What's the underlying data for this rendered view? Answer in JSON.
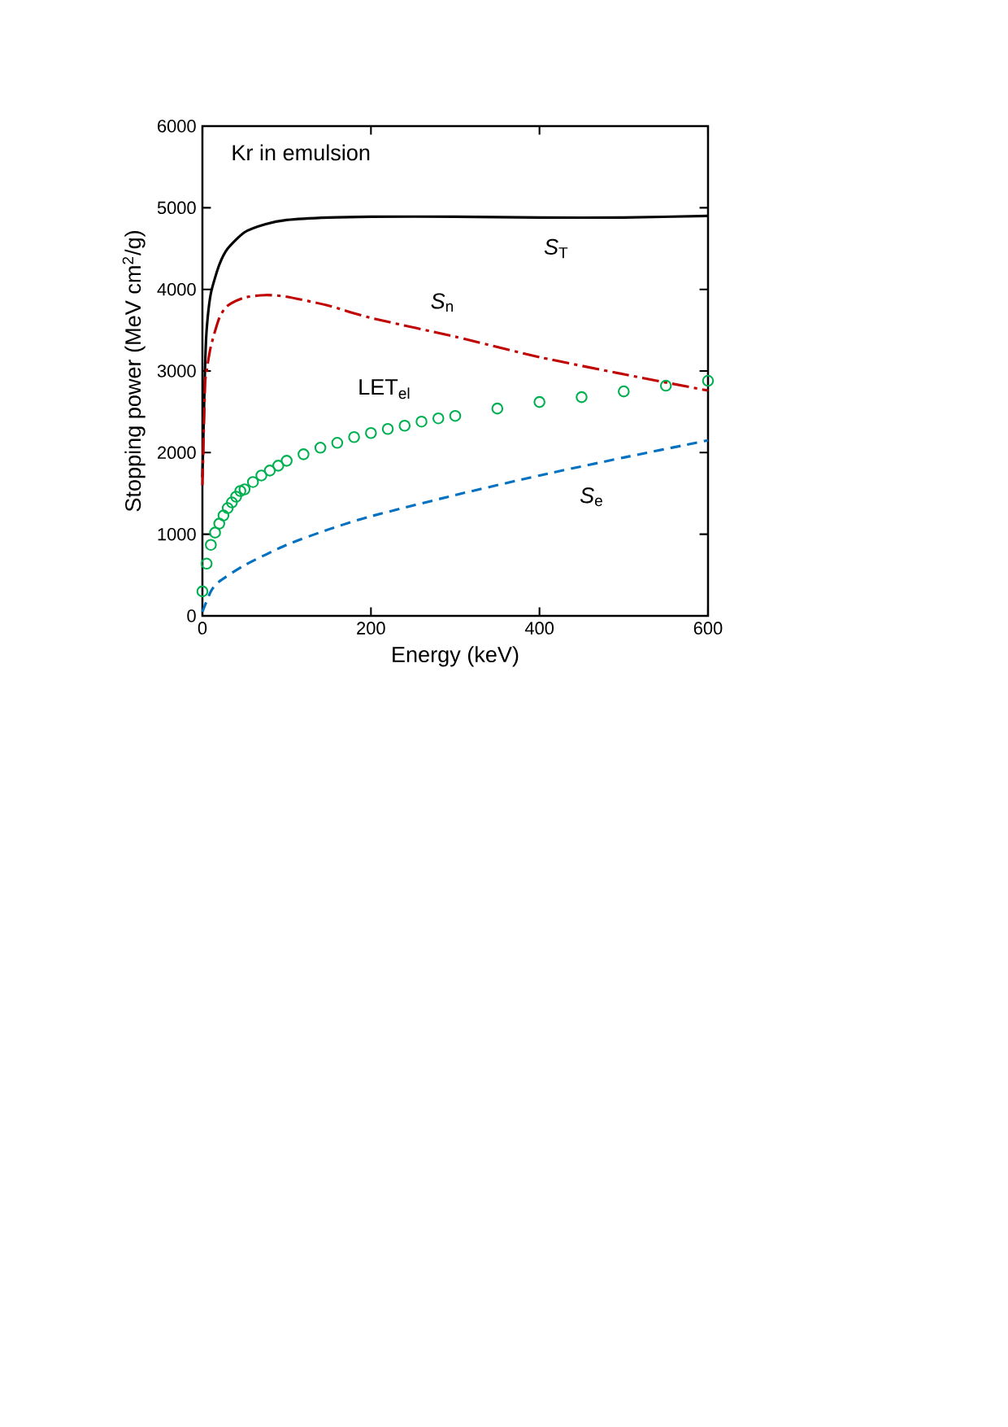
{
  "chart_data": {
    "type": "line",
    "xlabel": "Energy (keV)",
    "ylabel": "Stopping power (MeV cm$^{2}$/g)",
    "xlim": [
      0,
      600
    ],
    "xticks": [
      0,
      200,
      400,
      600
    ],
    "ylim": [
      0,
      6000
    ],
    "yticks": [
      0,
      1000,
      2000,
      3000,
      4000,
      5000,
      6000
    ],
    "series": [
      {
        "name": "*S*$_{T}$",
        "color": "#000000",
        "line_style": "solid",
        "x": [
          0,
          3,
          5,
          10,
          20,
          30,
          50,
          75,
          100,
          150,
          200,
          300,
          400,
          500,
          600
        ],
        "values": [
          1700,
          3000,
          3500,
          3950,
          4300,
          4500,
          4700,
          4800,
          4850,
          4880,
          4890,
          4890,
          4880,
          4880,
          4900
        ]
      },
      {
        "name": "*S*$_{n}$",
        "color": "#c00000",
        "line_style": "dashdot",
        "x": [
          0,
          3,
          5,
          10,
          20,
          30,
          50,
          75,
          100,
          150,
          200,
          300,
          400,
          500,
          600
        ],
        "values": [
          1600,
          2800,
          3000,
          3300,
          3650,
          3800,
          3900,
          3930,
          3910,
          3800,
          3650,
          3420,
          3170,
          2960,
          2760
        ]
      },
      {
        "name": "*S*$_{e}$",
        "color": "#0070c0",
        "line_style": "dashed",
        "x": [
          0,
          10,
          20,
          50,
          100,
          150,
          200,
          300,
          400,
          500,
          600
        ],
        "values": [
          50,
          300,
          420,
          620,
          870,
          1060,
          1220,
          1480,
          1720,
          1940,
          2150
        ]
      },
      {
        "name": "LET$_{el}$",
        "type": "scatter",
        "color": "#00b050",
        "marker": "circle",
        "x": [
          0,
          5,
          10,
          15,
          20,
          25,
          30,
          35,
          40,
          45,
          50,
          60,
          70,
          80,
          90,
          100,
          120,
          140,
          160,
          180,
          200,
          220,
          240,
          260,
          280,
          300,
          350,
          400,
          450,
          500,
          550,
          600
        ],
        "values": [
          300,
          640,
          870,
          1020,
          1130,
          1230,
          1320,
          1390,
          1460,
          1530,
          1550,
          1640,
          1720,
          1780,
          1840,
          1900,
          1980,
          2060,
          2120,
          2190,
          2240,
          2290,
          2330,
          2380,
          2420,
          2450,
          2540,
          2620,
          2680,
          2750,
          2820,
          2880
        ]
      }
    ],
    "annotations": [
      "Kr in emulsion"
    ]
  }
}
